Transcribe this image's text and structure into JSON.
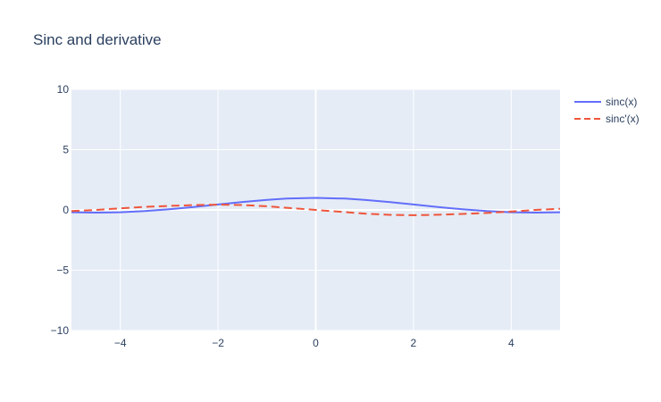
{
  "chart_data": {
    "type": "line",
    "title": "Sinc and derivative",
    "xlabel": "",
    "ylabel": "",
    "xlim": [
      -5,
      5
    ],
    "ylim": [
      -10,
      10
    ],
    "x_ticks": [
      -4,
      -2,
      0,
      2,
      4
    ],
    "y_ticks": [
      -10,
      -5,
      0,
      5,
      10
    ],
    "x_tick_labels": [
      "−4",
      "−2",
      "0",
      "2",
      "4"
    ],
    "y_tick_labels": [
      "−10",
      "−5",
      "0",
      "5",
      "10"
    ],
    "grid": true,
    "legend_position": "top-right",
    "plot_bg": "#e5ecf6",
    "series": [
      {
        "name": "sinc(x)",
        "color": "#636efa",
        "dash": "solid",
        "x": [
          -5,
          -4.5,
          -4,
          -3.5,
          -3,
          -2.5,
          -2,
          -1.5,
          -1,
          -0.6,
          0,
          0.6,
          1,
          1.5,
          2,
          2.5,
          3,
          3.5,
          4,
          4.5,
          5
        ],
        "y": [
          -0.19,
          -0.22,
          -0.19,
          -0.1,
          0.05,
          0.24,
          0.45,
          0.66,
          0.84,
          0.94,
          1.0,
          0.94,
          0.84,
          0.66,
          0.45,
          0.24,
          0.05,
          -0.1,
          -0.19,
          -0.22,
          -0.19
        ]
      },
      {
        "name": "sinc'(x)",
        "color": "#ef553b",
        "dash": "dash",
        "x": [
          -5,
          -4.5,
          -4,
          -3.5,
          -3,
          -2.5,
          -2,
          -1.5,
          -1,
          -0.5,
          0,
          0.5,
          1,
          1.5,
          2,
          2.5,
          3,
          3.5,
          4,
          4.5,
          5
        ],
        "y": [
          -0.1,
          0.0,
          0.13,
          0.25,
          0.33,
          0.4,
          0.44,
          0.41,
          0.3,
          0.15,
          0.0,
          -0.15,
          -0.3,
          -0.41,
          -0.44,
          -0.4,
          -0.33,
          -0.25,
          -0.13,
          0.0,
          0.1
        ]
      }
    ]
  }
}
